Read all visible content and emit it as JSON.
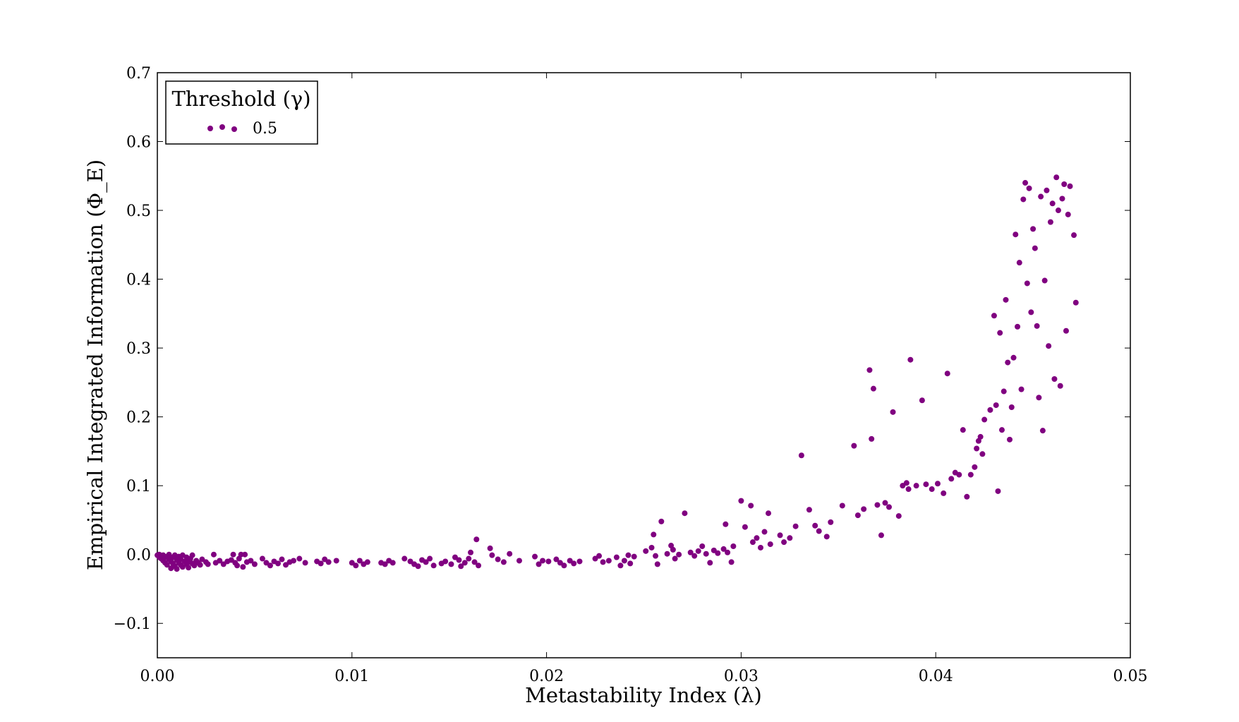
{
  "chart_data": {
    "type": "scatter",
    "xlabel": "Metastability Index (λ)",
    "ylabel": "Empirical Integrated Information (Φ_E)",
    "xlim": [
      0.0,
      0.05
    ],
    "ylim": [
      -0.15,
      0.7
    ],
    "x_ticks": [
      "0.00",
      "0.01",
      "0.02",
      "0.03",
      "0.04",
      "0.05"
    ],
    "y_ticks": [
      "−0.1",
      "0.0",
      "0.1",
      "0.2",
      "0.3",
      "0.4",
      "0.5",
      "0.6",
      "0.7"
    ],
    "grid": false,
    "legend": {
      "title": "Threshold (γ)",
      "placement": "top-left"
    },
    "series": [
      {
        "name": "0.5",
        "color": "#800080",
        "points": [
          [
            0.0,
            -0.001
          ],
          [
            0.0001,
            -0.004
          ],
          [
            0.0001,
            0.0
          ],
          [
            0.0002,
            -0.006
          ],
          [
            0.0002,
            -0.002
          ],
          [
            0.0003,
            -0.009
          ],
          [
            0.0003,
            -0.001
          ],
          [
            0.0004,
            -0.012
          ],
          [
            0.0004,
            -0.004
          ],
          [
            0.0005,
            -0.003
          ],
          [
            0.0005,
            -0.015
          ],
          [
            0.0006,
            -0.007
          ],
          [
            0.0006,
            0.0
          ],
          [
            0.0007,
            -0.01
          ],
          [
            0.0007,
            -0.02
          ],
          [
            0.0008,
            -0.004
          ],
          [
            0.0008,
            -0.013
          ],
          [
            0.0009,
            -0.001
          ],
          [
            0.0009,
            -0.017
          ],
          [
            0.001,
            -0.008
          ],
          [
            0.001,
            -0.021
          ],
          [
            0.0011,
            -0.012
          ],
          [
            0.0011,
            -0.003
          ],
          [
            0.0012,
            -0.015
          ],
          [
            0.0012,
            -0.007
          ],
          [
            0.0013,
            -0.018
          ],
          [
            0.0013,
            -0.001
          ],
          [
            0.0014,
            -0.01
          ],
          [
            0.0015,
            -0.014
          ],
          [
            0.0015,
            -0.004
          ],
          [
            0.0016,
            -0.011
          ],
          [
            0.0016,
            -0.019
          ],
          [
            0.0017,
            -0.006
          ],
          [
            0.0018,
            -0.013
          ],
          [
            0.0018,
            -0.001
          ],
          [
            0.0019,
            -0.016
          ],
          [
            0.002,
            -0.009
          ],
          [
            0.0021,
            -0.012
          ],
          [
            0.0022,
            -0.015
          ],
          [
            0.0023,
            -0.007
          ],
          [
            0.0025,
            -0.011
          ],
          [
            0.0026,
            -0.014
          ],
          [
            0.0029,
            0.0
          ],
          [
            0.003,
            -0.012
          ],
          [
            0.0032,
            -0.009
          ],
          [
            0.0034,
            -0.014
          ],
          [
            0.0036,
            -0.01
          ],
          [
            0.0038,
            -0.008
          ],
          [
            0.0039,
            0.0
          ],
          [
            0.004,
            -0.012
          ],
          [
            0.0041,
            -0.016
          ],
          [
            0.0042,
            -0.006
          ],
          [
            0.0043,
            0.0
          ],
          [
            0.0044,
            -0.018
          ],
          [
            0.0045,
            0.0
          ],
          [
            0.0046,
            -0.011
          ],
          [
            0.0048,
            -0.009
          ],
          [
            0.005,
            -0.014
          ],
          [
            0.0054,
            -0.006
          ],
          [
            0.0056,
            -0.012
          ],
          [
            0.0058,
            -0.016
          ],
          [
            0.006,
            -0.01
          ],
          [
            0.0062,
            -0.013
          ],
          [
            0.0064,
            -0.007
          ],
          [
            0.0066,
            -0.015
          ],
          [
            0.0068,
            -0.011
          ],
          [
            0.007,
            -0.009
          ],
          [
            0.0073,
            -0.006
          ],
          [
            0.0076,
            -0.012
          ],
          [
            0.0082,
            -0.01
          ],
          [
            0.0084,
            -0.013
          ],
          [
            0.0086,
            -0.007
          ],
          [
            0.0088,
            -0.011
          ],
          [
            0.0092,
            -0.009
          ],
          [
            0.01,
            -0.012
          ],
          [
            0.0102,
            -0.016
          ],
          [
            0.0104,
            -0.009
          ],
          [
            0.0106,
            -0.014
          ],
          [
            0.0108,
            -0.011
          ],
          [
            0.0115,
            -0.012
          ],
          [
            0.0117,
            -0.014
          ],
          [
            0.0119,
            -0.009
          ],
          [
            0.0121,
            -0.012
          ],
          [
            0.0127,
            -0.006
          ],
          [
            0.013,
            -0.01
          ],
          [
            0.0132,
            -0.014
          ],
          [
            0.0134,
            -0.017
          ],
          [
            0.0136,
            -0.008
          ],
          [
            0.0138,
            -0.011
          ],
          [
            0.014,
            -0.006
          ],
          [
            0.0142,
            -0.016
          ],
          [
            0.0146,
            -0.013
          ],
          [
            0.0148,
            -0.01
          ],
          [
            0.0151,
            -0.014
          ],
          [
            0.0153,
            -0.004
          ],
          [
            0.0155,
            -0.008
          ],
          [
            0.0156,
            -0.017
          ],
          [
            0.0158,
            -0.012
          ],
          [
            0.016,
            -0.006
          ],
          [
            0.0161,
            0.003
          ],
          [
            0.0163,
            -0.011
          ],
          [
            0.0164,
            0.022
          ],
          [
            0.0165,
            -0.016
          ],
          [
            0.0171,
            0.009
          ],
          [
            0.0172,
            -0.001
          ],
          [
            0.0175,
            -0.007
          ],
          [
            0.0178,
            -0.011
          ],
          [
            0.0181,
            0.001
          ],
          [
            0.0186,
            -0.009
          ],
          [
            0.0194,
            -0.003
          ],
          [
            0.0196,
            -0.014
          ],
          [
            0.0198,
            -0.009
          ],
          [
            0.0201,
            -0.01
          ],
          [
            0.0205,
            -0.007
          ],
          [
            0.0207,
            -0.012
          ],
          [
            0.0209,
            -0.016
          ],
          [
            0.0212,
            -0.009
          ],
          [
            0.0214,
            -0.013
          ],
          [
            0.0217,
            -0.01
          ],
          [
            0.0225,
            -0.006
          ],
          [
            0.0227,
            -0.002
          ],
          [
            0.0229,
            -0.011
          ],
          [
            0.0232,
            -0.009
          ],
          [
            0.0236,
            -0.004
          ],
          [
            0.0238,
            -0.016
          ],
          [
            0.024,
            -0.009
          ],
          [
            0.0242,
            -0.001
          ],
          [
            0.0243,
            -0.013
          ],
          [
            0.0245,
            -0.003
          ],
          [
            0.0251,
            0.005
          ],
          [
            0.0254,
            0.01
          ],
          [
            0.0255,
            0.029
          ],
          [
            0.0256,
            -0.002
          ],
          [
            0.0257,
            -0.014
          ],
          [
            0.0259,
            0.048
          ],
          [
            0.0262,
            0.001
          ],
          [
            0.0264,
            0.013
          ],
          [
            0.0265,
            0.007
          ],
          [
            0.0266,
            -0.006
          ],
          [
            0.0268,
            0.0
          ],
          [
            0.0271,
            0.06
          ],
          [
            0.0274,
            0.003
          ],
          [
            0.0276,
            -0.002
          ],
          [
            0.0278,
            0.005
          ],
          [
            0.028,
            0.012
          ],
          [
            0.0282,
            0.001
          ],
          [
            0.0284,
            -0.012
          ],
          [
            0.0286,
            0.006
          ],
          [
            0.0288,
            0.002
          ],
          [
            0.0291,
            0.008
          ],
          [
            0.0292,
            0.044
          ],
          [
            0.0293,
            0.003
          ],
          [
            0.0295,
            -0.011
          ],
          [
            0.0296,
            0.012
          ],
          [
            0.03,
            0.078
          ],
          [
            0.0302,
            0.04
          ],
          [
            0.0305,
            0.071
          ],
          [
            0.0306,
            0.018
          ],
          [
            0.0308,
            0.024
          ],
          [
            0.031,
            0.01
          ],
          [
            0.0312,
            0.033
          ],
          [
            0.0314,
            0.06
          ],
          [
            0.0315,
            0.015
          ],
          [
            0.032,
            0.028
          ],
          [
            0.0322,
            0.018
          ],
          [
            0.0325,
            0.024
          ],
          [
            0.0328,
            0.041
          ],
          [
            0.0331,
            0.144
          ],
          [
            0.0335,
            0.065
          ],
          [
            0.0338,
            0.042
          ],
          [
            0.034,
            0.034
          ],
          [
            0.0344,
            0.026
          ],
          [
            0.0346,
            0.047
          ],
          [
            0.0352,
            0.071
          ],
          [
            0.0358,
            0.158
          ],
          [
            0.036,
            0.057
          ],
          [
            0.0363,
            0.066
          ],
          [
            0.0366,
            0.268
          ],
          [
            0.0367,
            0.168
          ],
          [
            0.0368,
            0.241
          ],
          [
            0.037,
            0.072
          ],
          [
            0.0372,
            0.028
          ],
          [
            0.0374,
            0.075
          ],
          [
            0.0376,
            0.069
          ],
          [
            0.0378,
            0.207
          ],
          [
            0.0381,
            0.056
          ],
          [
            0.0383,
            0.1
          ],
          [
            0.0385,
            0.104
          ],
          [
            0.0386,
            0.095
          ],
          [
            0.0387,
            0.283
          ],
          [
            0.039,
            0.1
          ],
          [
            0.0393,
            0.224
          ],
          [
            0.0395,
            0.102
          ],
          [
            0.0398,
            0.095
          ],
          [
            0.0401,
            0.103
          ],
          [
            0.0404,
            0.089
          ],
          [
            0.0406,
            0.263
          ],
          [
            0.0408,
            0.11
          ],
          [
            0.041,
            0.119
          ],
          [
            0.0412,
            0.116
          ],
          [
            0.0414,
            0.181
          ],
          [
            0.0416,
            0.084
          ],
          [
            0.0418,
            0.116
          ],
          [
            0.042,
            0.127
          ],
          [
            0.0421,
            0.154
          ],
          [
            0.0422,
            0.165
          ],
          [
            0.0423,
            0.171
          ],
          [
            0.0424,
            0.146
          ],
          [
            0.0425,
            0.196
          ],
          [
            0.0428,
            0.21
          ],
          [
            0.043,
            0.347
          ],
          [
            0.0431,
            0.217
          ],
          [
            0.0432,
            0.092
          ],
          [
            0.0433,
            0.322
          ],
          [
            0.0434,
            0.181
          ],
          [
            0.0435,
            0.237
          ],
          [
            0.0436,
            0.37
          ],
          [
            0.0437,
            0.279
          ],
          [
            0.0438,
            0.167
          ],
          [
            0.0439,
            0.214
          ],
          [
            0.044,
            0.286
          ],
          [
            0.0441,
            0.465
          ],
          [
            0.0442,
            0.331
          ],
          [
            0.0443,
            0.424
          ],
          [
            0.0444,
            0.24
          ],
          [
            0.0445,
            0.516
          ],
          [
            0.0446,
            0.54
          ],
          [
            0.0447,
            0.394
          ],
          [
            0.0448,
            0.532
          ],
          [
            0.0449,
            0.352
          ],
          [
            0.045,
            0.473
          ],
          [
            0.0451,
            0.445
          ],
          [
            0.0452,
            0.332
          ],
          [
            0.0453,
            0.228
          ],
          [
            0.0454,
            0.52
          ],
          [
            0.0455,
            0.18
          ],
          [
            0.0456,
            0.398
          ],
          [
            0.0457,
            0.529
          ],
          [
            0.0458,
            0.303
          ],
          [
            0.0459,
            0.483
          ],
          [
            0.046,
            0.51
          ],
          [
            0.0461,
            0.255
          ],
          [
            0.0462,
            0.548
          ],
          [
            0.0463,
            0.5
          ],
          [
            0.0464,
            0.245
          ],
          [
            0.0465,
            0.517
          ],
          [
            0.0466,
            0.538
          ],
          [
            0.0467,
            0.325
          ],
          [
            0.0468,
            0.494
          ],
          [
            0.0469,
            0.535
          ],
          [
            0.0471,
            0.464
          ],
          [
            0.0472,
            0.366
          ]
        ]
      }
    ]
  }
}
